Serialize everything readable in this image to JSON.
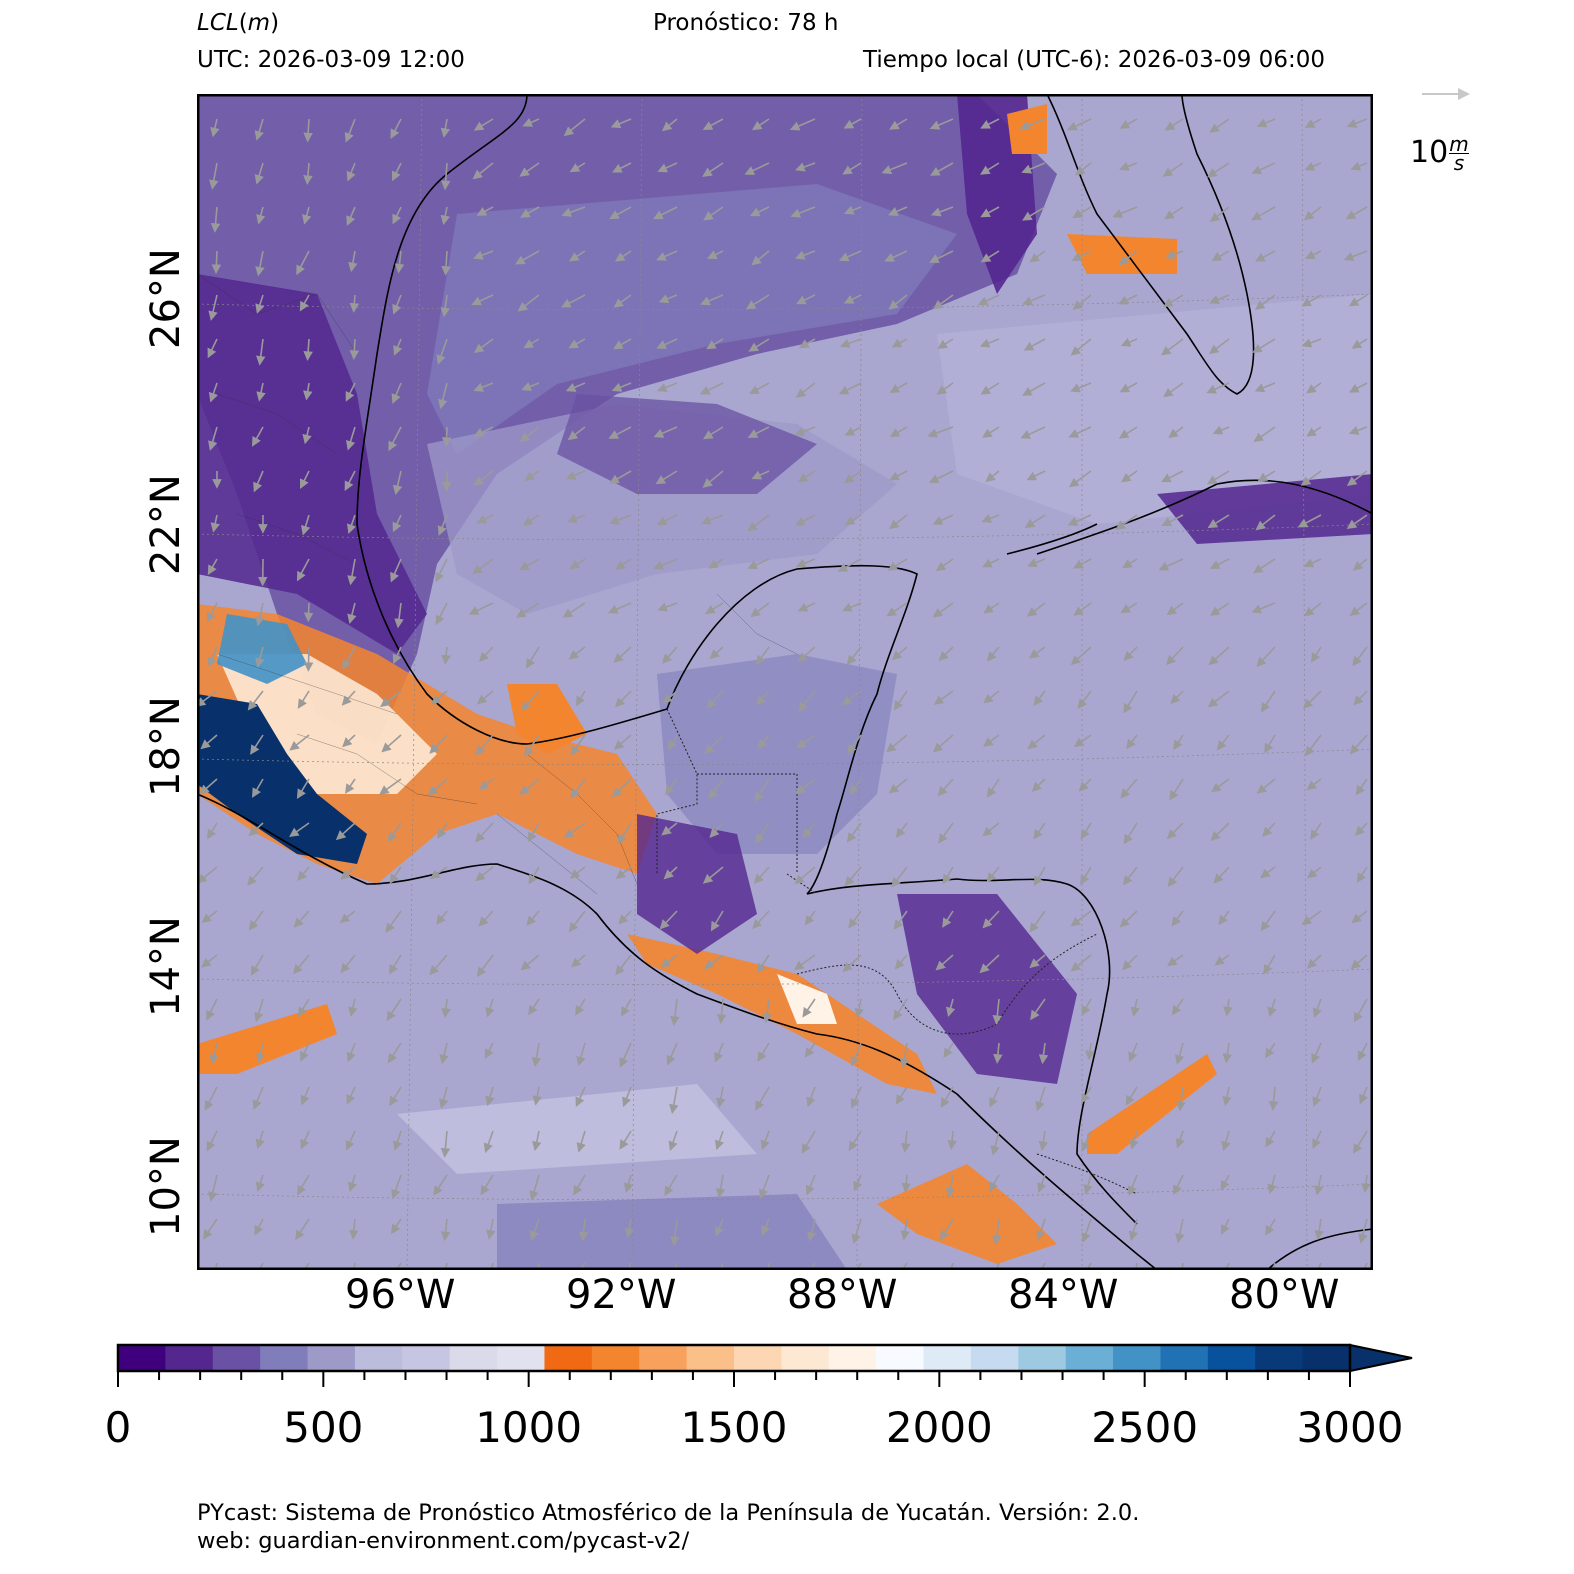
{
  "header": {
    "variable": "LCL",
    "unit": "m",
    "forecast": "Pronóstico: 78 h",
    "utc": "UTC:  2026-03-09 12:00",
    "local": "Tiempo local (UTC-6): 2026-03-09 06:00"
  },
  "map": {
    "lat_labels": [
      "26°N",
      "22°N",
      "18°N",
      "14°N",
      "10°N"
    ],
    "lon_labels": [
      "96°W",
      "92°W",
      "88°W",
      "84°W",
      "80°W"
    ],
    "vector_legend": {
      "value": "10",
      "unit_num": "m",
      "unit_den": "s"
    }
  },
  "colorbar": {
    "ticks": [
      "0",
      "500",
      "1000",
      "1500",
      "2000",
      "2500",
      "3000"
    ],
    "min": 0,
    "max": 3000,
    "step": 100,
    "colors": [
      "#3f007d",
      "#3f007d",
      "#54278f",
      "#54278f",
      "#6a51a3",
      "#6a51a3",
      "#807dba",
      "#807dba",
      "#9e9ac8",
      "#9e9ac8",
      "#bcbddc",
      "#bcbddc",
      "#dadaeb",
      "#dadaeb",
      "#f2f0f7",
      "#f2f0f7",
      "#fdd0a2",
      "#fdd0a2",
      "#fdae6b",
      "#fdae6b"
    ],
    "palette": [
      "#3f007d",
      "#54278f",
      "#6a51a3",
      "#807dba",
      "#9e9ac8",
      "#bcbddc",
      "#c7c6e2",
      "#dadaeb",
      "#e2e1ef",
      "#f16913",
      "#f4852f",
      "#f8a15c",
      "#fbbf8a",
      "#fdd6b3",
      "#fde8d4",
      "#fff2e6",
      "#f7fbff",
      "#deebf7",
      "#c6dbef",
      "#9ecae1",
      "#6baed6",
      "#4292c6",
      "#2171b5",
      "#08519c",
      "#083a7a",
      "#08306b"
    ]
  },
  "footer": {
    "line1": "PYcast: Sistema de Pronóstico Atmosférico de la Península de Yucatán. Versión: 2.0.",
    "line2": "web: guardian-environment.com/pycast-v2/"
  }
}
